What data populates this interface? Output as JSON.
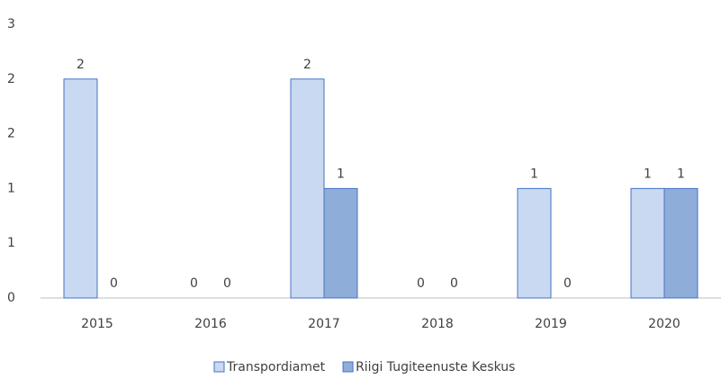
{
  "chart_data": {
    "type": "bar",
    "categories": [
      "2015",
      "2016",
      "2017",
      "2018",
      "2019",
      "2020"
    ],
    "series": [
      {
        "name": "Transpordiamet",
        "color": "#c9d9f1",
        "values": [
          2,
          0,
          2,
          0,
          1,
          1
        ]
      },
      {
        "name": "Riigi Tugiteenuste Keskus",
        "color": "#8fadd9",
        "values": [
          0,
          0,
          1,
          0,
          0,
          1
        ]
      }
    ],
    "ylim": [
      0,
      2.5
    ],
    "yticks": [
      0,
      {
        "value": 0.5,
        "label": "1"
      },
      1,
      {
        "value": 1.5,
        "label": "2"
      },
      2,
      {
        "value": 2.5,
        "label": "3"
      }
    ],
    "grid": false,
    "legend": "bottom"
  }
}
